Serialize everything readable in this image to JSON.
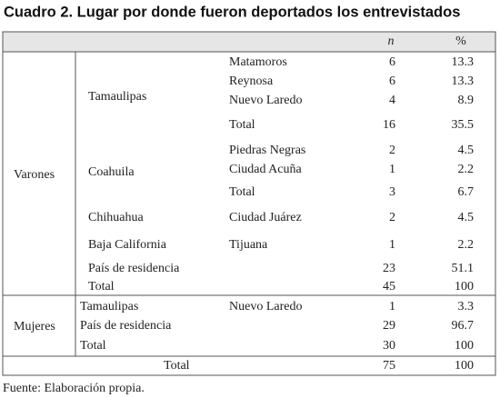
{
  "title": "Cuadro 2. Lugar por donde fueron deportados los entrevistados",
  "table": {
    "header": [
      "n",
      "%"
    ],
    "groups": [
      {
        "label": "Varones",
        "states": [
          {
            "name": "Tamaulipas",
            "places": [
              {
                "name": "Matamoros",
                "n": 6,
                "pct": 13.3
              },
              {
                "name": "Reynosa",
                "n": 6,
                "pct": 13.3
              },
              {
                "name": "Nuevo Laredo",
                "n": 4,
                "pct": 8.9
              }
            ],
            "total": {
              "label": "Total",
              "n": 16,
              "pct": 35.5
            }
          },
          {
            "name": "Coahuila",
            "places": [
              {
                "name": "Piedras Negras",
                "n": 2,
                "pct": 4.5
              },
              {
                "name": "Ciudad Acuña",
                "n": 1,
                "pct": 2.2
              }
            ],
            "total": {
              "label": "Total",
              "n": 3,
              "pct": 6.7
            }
          },
          {
            "name": "Chihuahua",
            "places": [
              {
                "name": "Ciudad Juárez",
                "n": 2,
                "pct": 4.5
              }
            ]
          },
          {
            "name": "Baja California",
            "places": [
              {
                "name": "Tijuana",
                "n": 1,
                "pct": 2.2
              }
            ]
          }
        ],
        "residence": {
          "label": "País de residencia",
          "n": 23,
          "pct": 51.1
        },
        "total": {
          "label": "Total",
          "n": 45,
          "pct": 100
        }
      },
      {
        "label": "Mujeres",
        "states": [
          {
            "name": "Tamaulipas",
            "places": [
              {
                "name": "Nuevo Laredo",
                "n": 1,
                "pct": 3.3
              }
            ]
          }
        ],
        "residence": {
          "label": "País de residencia",
          "n": 29,
          "pct": 96.7
        },
        "total": {
          "label": "Total",
          "n": 30,
          "pct": 100
        }
      }
    ],
    "total": {
      "label": "Total",
      "n": 75,
      "pct": 100
    }
  },
  "footer": "Fuente: Elaboración propia."
}
